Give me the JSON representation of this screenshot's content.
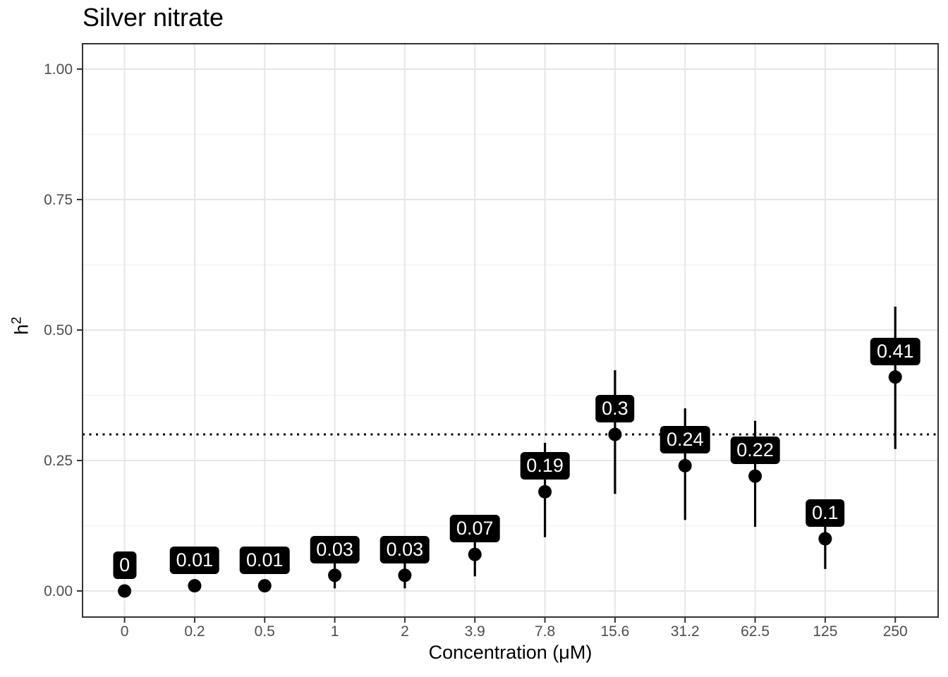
{
  "chart_data": {
    "type": "scatter",
    "title": "Silver nitrate",
    "xlabel": "Concentration (μM)",
    "ylabel": "h²",
    "ylabel_base": "h",
    "ylabel_sup": "2",
    "categories": [
      "0",
      "0.2",
      "0.5",
      "1",
      "2",
      "3.9",
      "7.8",
      "15.6",
      "31.2",
      "62.5",
      "125",
      "250"
    ],
    "values": [
      0,
      0.01,
      0.01,
      0.03,
      0.03,
      0.07,
      0.19,
      0.3,
      0.24,
      0.22,
      0.1,
      0.41
    ],
    "point_labels": [
      "0",
      "0.01",
      "0.01",
      "0.03",
      "0.03",
      "0.07",
      "0.19",
      "0.3",
      "0.24",
      "0.22",
      "0.1",
      "0.41"
    ],
    "error_low": [
      0,
      0.01,
      0.01,
      0.005,
      0.005,
      0.028,
      0.103,
      0.186,
      0.136,
      0.123,
      0.042,
      0.272
    ],
    "error_high": [
      0,
      0.01,
      0.01,
      0.06,
      0.06,
      0.112,
      0.284,
      0.423,
      0.35,
      0.326,
      0.158,
      0.545
    ],
    "reference_line_y": 0.3,
    "reference_line_style": "dotted",
    "y_ticks": [
      "0.00",
      "0.25",
      "0.50",
      "0.75",
      "1.00"
    ],
    "y_tick_values": [
      0,
      0.25,
      0.5,
      0.75,
      1.0
    ],
    "y_minor_tick_values": [
      0.125,
      0.375,
      0.625,
      0.875
    ],
    "ylim": [
      -0.05,
      1.05
    ],
    "grid": true,
    "legend_position": "none",
    "colors": {
      "point": "#000000",
      "error_bar": "#000000",
      "label_bg": "#000000",
      "label_text": "#ffffff",
      "grid_major": "#e6e6e6",
      "grid_minor": "#f2f2f2",
      "axis_text": "#4d4d4d",
      "panel_border": "#333333",
      "reference_line": "#000000",
      "background": "#ffffff"
    }
  }
}
